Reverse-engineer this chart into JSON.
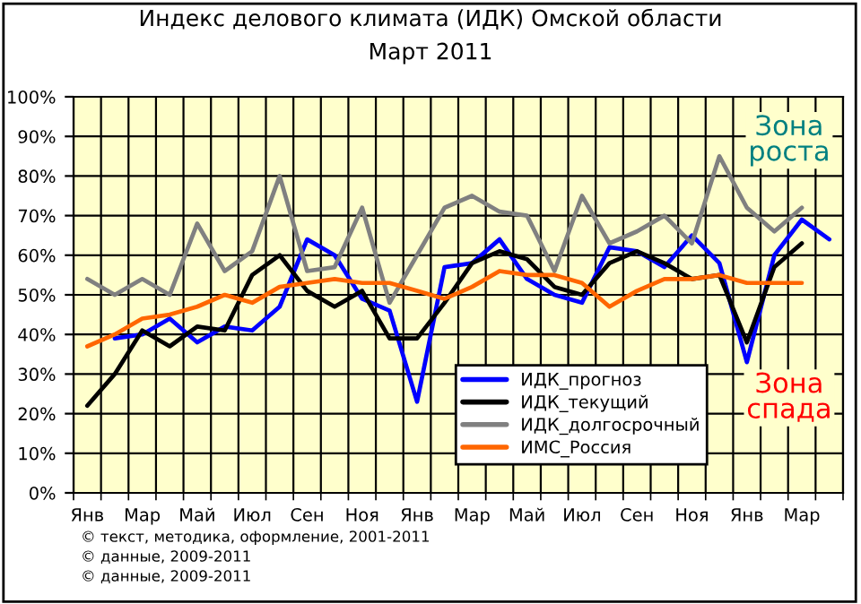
{
  "chart_data": {
    "type": "line",
    "title": "Индекс делового климата (ИДК) Омской области",
    "subtitle": "Март 2011",
    "categories": [
      "Янв",
      null,
      "Мар",
      null,
      "Май",
      null,
      "Июл",
      null,
      "Сен",
      null,
      "Ноя",
      null,
      "Янв",
      null,
      "Мар",
      null,
      "Май",
      null,
      "Июл",
      null,
      "Сен",
      null,
      "Ноя",
      null,
      "Янв",
      null,
      "Мар",
      null
    ],
    "series": [
      {
        "name": "ИДК_прогноз",
        "color": "#0000ff",
        "values": [
          null,
          39,
          40,
          44,
          38,
          42,
          41,
          47,
          64,
          60,
          49,
          46,
          23,
          57,
          58,
          64,
          54,
          50,
          48,
          62,
          61,
          57,
          65,
          58,
          33,
          60,
          69,
          64
        ]
      },
      {
        "name": "ИДК_текущий",
        "color": "#000000",
        "values": [
          22,
          30,
          41,
          37,
          42,
          41,
          55,
          60,
          51,
          47,
          51,
          39,
          39,
          48,
          58,
          61,
          59,
          52,
          50,
          58,
          61,
          58,
          54,
          55,
          38,
          57,
          63,
          null
        ]
      },
      {
        "name": "ИДК_долгосрочный",
        "color": "#808080",
        "values": [
          54,
          50,
          54,
          50,
          68,
          56,
          61,
          80,
          56,
          57,
          72,
          48,
          60,
          72,
          75,
          71,
          70,
          56,
          75,
          63,
          66,
          70,
          63,
          85,
          72,
          66,
          72,
          null
        ]
      },
      {
        "name": "ИМС_Россия",
        "color": "#ff6600",
        "values": [
          37,
          40,
          44,
          45,
          47,
          50,
          48,
          52,
          53,
          54,
          53,
          53,
          51,
          49,
          52,
          56,
          55,
          55,
          53,
          47,
          51,
          54,
          54,
          55,
          53,
          53,
          53,
          null
        ]
      }
    ],
    "ylim": [
      0,
      100
    ],
    "yticks": [
      {
        "value": 0,
        "label": "0%"
      },
      {
        "value": 10,
        "label": "10%"
      },
      {
        "value": 20,
        "label": "20%"
      },
      {
        "value": 30,
        "label": "30%"
      },
      {
        "value": 40,
        "label": "40%"
      },
      {
        "value": 50,
        "label": "50%"
      },
      {
        "value": 60,
        "label": "60%"
      },
      {
        "value": 70,
        "label": "70%"
      },
      {
        "value": 80,
        "label": "80%"
      },
      {
        "value": 90,
        "label": "90%"
      },
      {
        "value": 100,
        "label": "100%"
      }
    ],
    "grid": true,
    "legend": "bottom",
    "marker": "none",
    "line_style": "solid",
    "annotations": [
      "Зона\nроста",
      "Зона\nспада",
      "© текст, методика, оформление, 2001-2011",
      "© данные, 2009-2011",
      "© данные, 2009-2011"
    ]
  }
}
